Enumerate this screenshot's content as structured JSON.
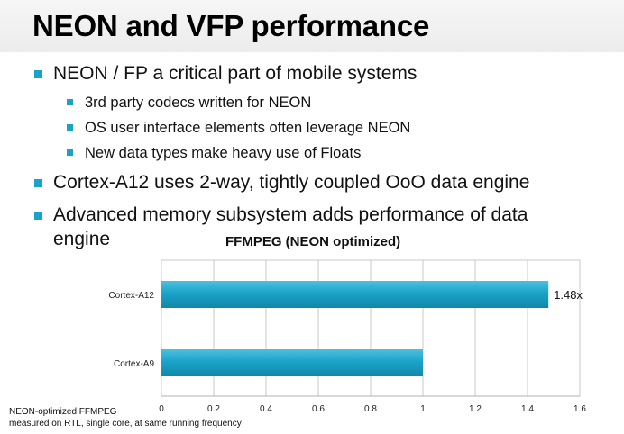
{
  "slide": {
    "title": "NEON and VFP performance",
    "bullets": [
      {
        "text": "NEON / FP a critical part of mobile systems",
        "level": 1
      },
      {
        "text": "3rd party codecs written for NEON",
        "level": 2
      },
      {
        "text": "OS user interface elements often leverage NEON",
        "level": 2
      },
      {
        "text": "New data types make heavy use of Floats",
        "level": 2
      },
      {
        "text": "Cortex-A12 uses 2-way, tightly coupled OoO data engine",
        "level": 1
      },
      {
        "text": "Advanced memory subsystem adds performance of data",
        "level": 1
      },
      {
        "text": "engine",
        "level": 1
      }
    ],
    "footnote_line1": "NEON-optimized FFMPEG",
    "footnote_line2": "measured on RTL, single core, at same running frequency",
    "accent_color": "#1aa3c9"
  },
  "chart_data": {
    "type": "bar",
    "orientation": "horizontal",
    "title": "FFMPEG (NEON optimized)",
    "categories": [
      "Cortex-A12",
      "Cortex-A9"
    ],
    "values": [
      1.48,
      1.0
    ],
    "data_labels": [
      "1.48x",
      ""
    ],
    "xlim": [
      0,
      1.6
    ],
    "xticks": [
      "0",
      "0.2",
      "0.4",
      "0.6",
      "0.8",
      "1",
      "1.2",
      "1.4",
      "1.6"
    ],
    "grid": true,
    "bar_color": "#1aa3c9"
  }
}
